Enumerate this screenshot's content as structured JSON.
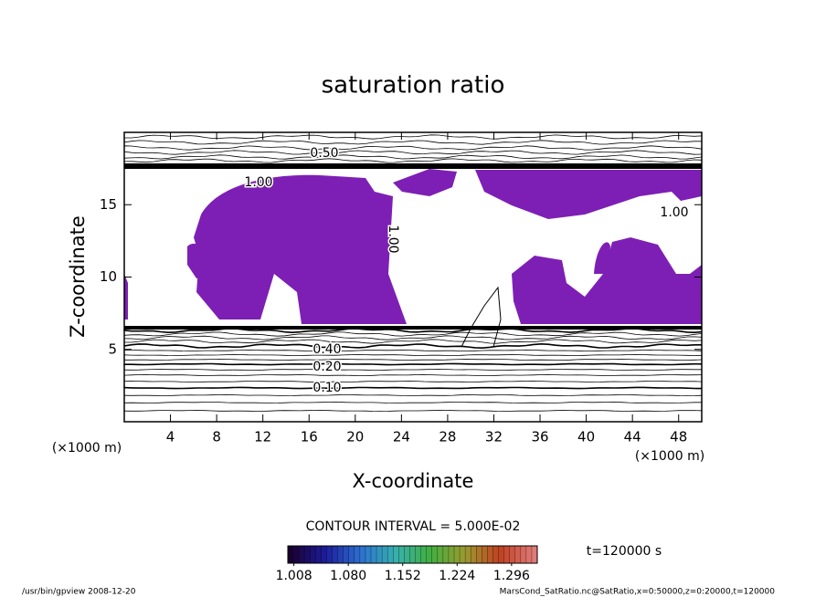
{
  "chart_data": {
    "type": "contour",
    "title": "saturation ratio",
    "xlabel": "X-coordinate",
    "ylabel": "Z-coordinate",
    "x_unit": "(×1000 m)",
    "xlim": [
      0,
      50
    ],
    "xticks": [
      4,
      8,
      12,
      16,
      20,
      24,
      28,
      32,
      36,
      40,
      44,
      48
    ],
    "ylim": [
      0,
      20
    ],
    "yticks": [
      5,
      10,
      15
    ],
    "fill_color": "#7d1fb5",
    "contour_labels": [
      {
        "value": 0.5,
        "label": "0.50"
      },
      {
        "value": 1.0,
        "label": "1.00"
      },
      {
        "value": 1.0,
        "label": "1.00"
      },
      {
        "value": 1.0,
        "label": "1.00"
      },
      {
        "value": 0.4,
        "label": "0.40"
      },
      {
        "value": 0.2,
        "label": "0.20"
      },
      {
        "value": 0.1,
        "label": "0.10"
      }
    ],
    "contour_interval": "CONTOUR INTERVAL = 5.000E-02",
    "time": "t=120000 s",
    "colorbar": {
      "lim": [
        1.0,
        1.33
      ],
      "ticks": [
        {
          "value": 1.008,
          "label": "1.008"
        },
        {
          "value": 1.08,
          "label": "1.080"
        },
        {
          "value": 1.152,
          "label": "1.152"
        },
        {
          "value": 1.224,
          "label": "1.224"
        },
        {
          "value": 1.296,
          "label": "1.296"
        }
      ],
      "colors": [
        "#1a0030",
        "#1c1c9c",
        "#2c70d0",
        "#36b0b0",
        "#40b040",
        "#9a9a30",
        "#c04020",
        "#e07a7a"
      ]
    },
    "footer_left": "/usr/bin/gpview  2008-12-20",
    "footer_right": "MarsCond_SatRatio.nc@SatRatio,x=0:50000,z=0:20000,t=120000"
  }
}
